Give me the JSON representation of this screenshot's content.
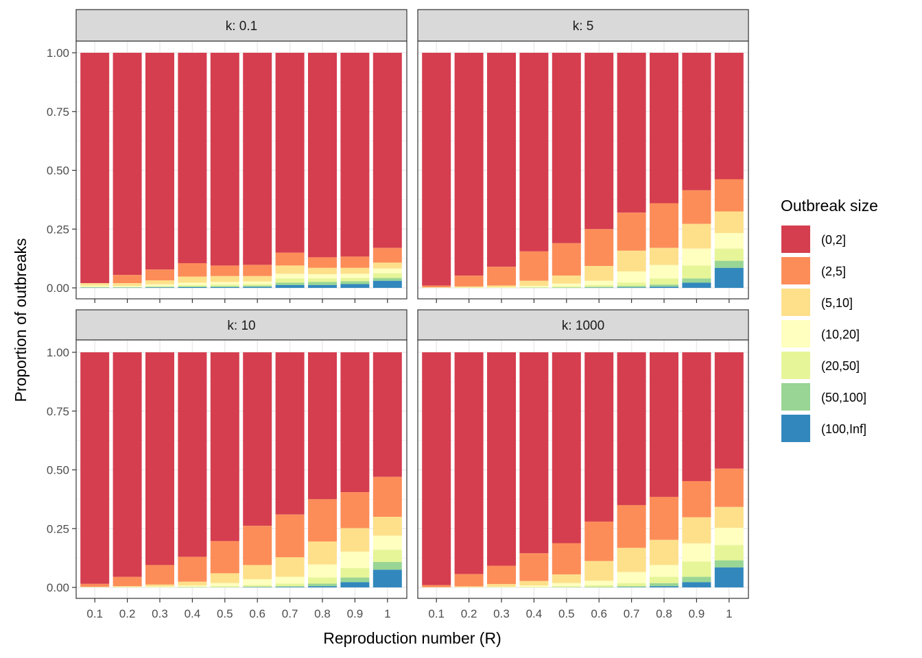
{
  "chart_data": {
    "type": "bar",
    "stacked": true,
    "facet_label_prefix": "k: ",
    "xlabel": "Reproduction number (R)",
    "ylabel": "Proportion of outbreaks",
    "ylim": [
      0,
      1
    ],
    "y_ticks": [
      "0.00",
      "0.25",
      "0.50",
      "0.75",
      "1.00"
    ],
    "categories": [
      "0.1",
      "0.2",
      "0.3",
      "0.4",
      "0.5",
      "0.6",
      "0.7",
      "0.8",
      "0.9",
      "1"
    ],
    "grid": true,
    "legend": {
      "title": "Outbreak size",
      "placement": "right",
      "entries": [
        "(0,2]",
        "(2,5]",
        "(5,10]",
        "(10,20]",
        "(20,50]",
        "(50,100]",
        "(100,Inf]"
      ],
      "colors": [
        "#D53E4F",
        "#FC8D59",
        "#FEE08B",
        "#FFFFBF",
        "#E6F598",
        "#99D594",
        "#3288BD"
      ]
    },
    "panels": [
      {
        "k": "0.1",
        "cumulative": [
          [
            0.02,
            0.02,
            0.01,
            0.005,
            0.002,
            0.001
          ],
          [
            0.055,
            0.02,
            0.008,
            0.004,
            0.002,
            0.001
          ],
          [
            0.078,
            0.032,
            0.015,
            0.008,
            0.004,
            0.002
          ],
          [
            0.105,
            0.048,
            0.022,
            0.012,
            0.006,
            0.003
          ],
          [
            0.095,
            0.05,
            0.025,
            0.014,
            0.007,
            0.003
          ],
          [
            0.098,
            0.05,
            0.027,
            0.016,
            0.009,
            0.004
          ],
          [
            0.15,
            0.095,
            0.06,
            0.04,
            0.022,
            0.012
          ],
          [
            0.13,
            0.085,
            0.058,
            0.04,
            0.025,
            0.012
          ],
          [
            0.133,
            0.085,
            0.06,
            0.042,
            0.028,
            0.016
          ],
          [
            0.17,
            0.107,
            0.082,
            0.062,
            0.042,
            0.03
          ]
        ]
      },
      {
        "k": "5",
        "cumulative": [
          [
            0.01,
            0.002,
            0.001,
            0,
            0,
            0
          ],
          [
            0.052,
            0.006,
            0.002,
            0.001,
            0,
            0
          ],
          [
            0.09,
            0.01,
            0.003,
            0.001,
            0,
            0
          ],
          [
            0.155,
            0.03,
            0.008,
            0.003,
            0.001,
            0
          ],
          [
            0.19,
            0.052,
            0.018,
            0.006,
            0.002,
            0
          ],
          [
            0.25,
            0.093,
            0.03,
            0.012,
            0.004,
            0.001
          ],
          [
            0.32,
            0.158,
            0.07,
            0.022,
            0.008,
            0.002
          ],
          [
            0.36,
            0.17,
            0.097,
            0.04,
            0.014,
            0.005
          ],
          [
            0.415,
            0.272,
            0.167,
            0.095,
            0.04,
            0.022
          ],
          [
            0.462,
            0.325,
            0.233,
            0.167,
            0.115,
            0.085
          ]
        ]
      },
      {
        "k": "10",
        "cumulative": [
          [
            0.015,
            0.002,
            0.001,
            0,
            0,
            0
          ],
          [
            0.045,
            0.005,
            0.002,
            0.001,
            0,
            0
          ],
          [
            0.095,
            0.012,
            0.004,
            0.001,
            0,
            0
          ],
          [
            0.13,
            0.024,
            0.008,
            0.003,
            0.001,
            0
          ],
          [
            0.197,
            0.06,
            0.018,
            0.005,
            0.001,
            0
          ],
          [
            0.262,
            0.095,
            0.035,
            0.01,
            0.003,
            0.001
          ],
          [
            0.31,
            0.128,
            0.045,
            0.016,
            0.005,
            0.002
          ],
          [
            0.375,
            0.195,
            0.097,
            0.042,
            0.016,
            0.005
          ],
          [
            0.405,
            0.252,
            0.152,
            0.082,
            0.042,
            0.022
          ],
          [
            0.47,
            0.3,
            0.22,
            0.16,
            0.108,
            0.075
          ]
        ]
      },
      {
        "k": "1000",
        "cumulative": [
          [
            0.01,
            0.001,
            0,
            0,
            0,
            0
          ],
          [
            0.057,
            0.004,
            0.001,
            0,
            0,
            0
          ],
          [
            0.092,
            0.014,
            0.003,
            0.001,
            0,
            0
          ],
          [
            0.145,
            0.027,
            0.008,
            0.002,
            0,
            0
          ],
          [
            0.188,
            0.055,
            0.018,
            0.005,
            0.001,
            0
          ],
          [
            0.28,
            0.112,
            0.028,
            0.009,
            0.002,
            0
          ],
          [
            0.35,
            0.168,
            0.065,
            0.018,
            0.005,
            0.001
          ],
          [
            0.385,
            0.202,
            0.095,
            0.045,
            0.018,
            0.005
          ],
          [
            0.452,
            0.298,
            0.187,
            0.11,
            0.045,
            0.022
          ],
          [
            0.505,
            0.342,
            0.253,
            0.18,
            0.115,
            0.085
          ]
        ]
      }
    ]
  }
}
